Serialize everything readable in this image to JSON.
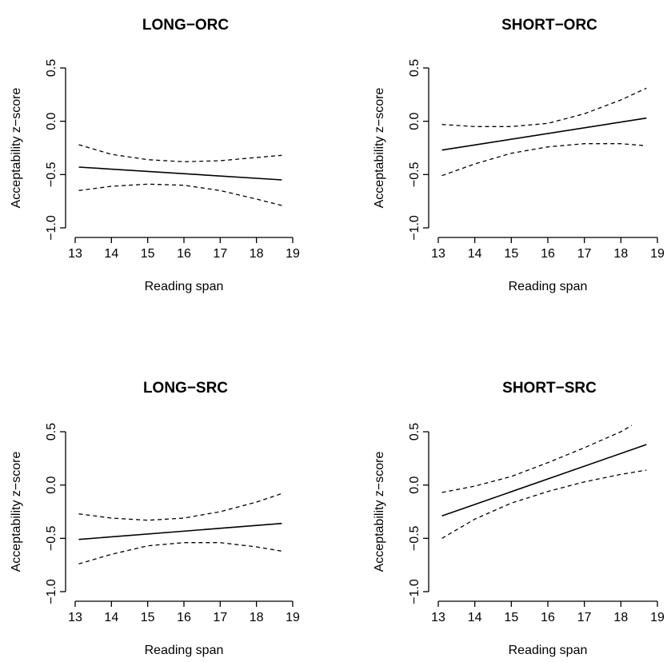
{
  "chart_data": [
    {
      "type": "line",
      "title": "LONG−ORC",
      "xlabel": "Reading span",
      "ylabel": "Acceptability z−score",
      "xlim": [
        13,
        19
      ],
      "ylim": [
        -1.0,
        0.5
      ],
      "x_ticks": [
        "13",
        "14",
        "15",
        "16",
        "17",
        "18",
        "19"
      ],
      "y_ticks": [
        "−1.0",
        "−0.5",
        "0.0",
        "0.5"
      ],
      "grid": false,
      "series": [
        {
          "style": "solid",
          "x": [
            13.1,
            18.7
          ],
          "y": [
            -0.43,
            -0.55
          ]
        },
        {
          "style": "dashed",
          "x": [
            13.1,
            14.0,
            15.0,
            16.0,
            17.0,
            18.0,
            18.7
          ],
          "y": [
            -0.22,
            -0.31,
            -0.36,
            -0.38,
            -0.37,
            -0.34,
            -0.32
          ]
        },
        {
          "style": "dashed",
          "x": [
            13.1,
            14.0,
            15.0,
            16.0,
            17.0,
            18.0,
            18.7
          ],
          "y": [
            -0.65,
            -0.61,
            -0.59,
            -0.6,
            -0.65,
            -0.73,
            -0.79
          ]
        }
      ]
    },
    {
      "type": "line",
      "title": "SHORT−ORC",
      "xlabel": "Reading span",
      "ylabel": "Acceptability z−score",
      "xlim": [
        13,
        19
      ],
      "ylim": [
        -1.0,
        0.5
      ],
      "x_ticks": [
        "13",
        "14",
        "15",
        "16",
        "17",
        "18",
        "19"
      ],
      "y_ticks": [
        "−1.0",
        "−0.5",
        "0.0",
        "0.5"
      ],
      "grid": false,
      "series": [
        {
          "style": "solid",
          "x": [
            13.1,
            18.7
          ],
          "y": [
            -0.27,
            0.03
          ]
        },
        {
          "style": "dashed",
          "x": [
            13.1,
            14.0,
            15.0,
            16.0,
            17.0,
            18.0,
            18.7
          ],
          "y": [
            -0.03,
            -0.05,
            -0.05,
            -0.02,
            0.07,
            0.2,
            0.31
          ]
        },
        {
          "style": "dashed",
          "x": [
            13.1,
            14.0,
            15.0,
            16.0,
            17.0,
            18.0,
            18.7
          ],
          "y": [
            -0.51,
            -0.4,
            -0.3,
            -0.24,
            -0.21,
            -0.21,
            -0.23
          ]
        }
      ]
    },
    {
      "type": "line",
      "title": "LONG−SRC",
      "xlabel": "Reading span",
      "ylabel": "Acceptability z−score",
      "xlim": [
        13,
        19
      ],
      "ylim": [
        -1.0,
        0.5
      ],
      "x_ticks": [
        "13",
        "14",
        "15",
        "16",
        "17",
        "18",
        "19"
      ],
      "y_ticks": [
        "−1.0",
        "−0.5",
        "0.0",
        "0.5"
      ],
      "grid": false,
      "series": [
        {
          "style": "solid",
          "x": [
            13.1,
            18.7
          ],
          "y": [
            -0.51,
            -0.36
          ]
        },
        {
          "style": "dashed",
          "x": [
            13.1,
            14.0,
            15.0,
            16.0,
            17.0,
            18.0,
            18.7
          ],
          "y": [
            -0.27,
            -0.31,
            -0.33,
            -0.31,
            -0.25,
            -0.16,
            -0.08
          ]
        },
        {
          "style": "dashed",
          "x": [
            13.1,
            14.0,
            15.0,
            16.0,
            17.0,
            18.0,
            18.7
          ],
          "y": [
            -0.74,
            -0.65,
            -0.57,
            -0.54,
            -0.54,
            -0.58,
            -0.62
          ]
        }
      ]
    },
    {
      "type": "line",
      "title": "SHORT−SRC",
      "xlabel": "Reading span",
      "ylabel": "Acceptability z−score",
      "xlim": [
        13,
        19
      ],
      "ylim": [
        -1.0,
        0.5
      ],
      "x_ticks": [
        "13",
        "14",
        "15",
        "16",
        "17",
        "18",
        "19"
      ],
      "y_ticks": [
        "−1.0",
        "−0.5",
        "0.0",
        "0.5"
      ],
      "grid": false,
      "series": [
        {
          "style": "solid",
          "x": [
            13.1,
            18.7
          ],
          "y": [
            -0.29,
            0.38
          ]
        },
        {
          "style": "dashed",
          "x": [
            13.1,
            14.0,
            15.0,
            16.0,
            17.0,
            18.0,
            18.3
          ],
          "y": [
            -0.07,
            -0.01,
            0.08,
            0.21,
            0.35,
            0.5,
            0.56
          ]
        },
        {
          "style": "dashed",
          "x": [
            13.1,
            14.0,
            15.0,
            16.0,
            17.0,
            18.0,
            18.7
          ],
          "y": [
            -0.5,
            -0.32,
            -0.17,
            -0.06,
            0.03,
            0.1,
            0.14
          ]
        }
      ]
    }
  ]
}
